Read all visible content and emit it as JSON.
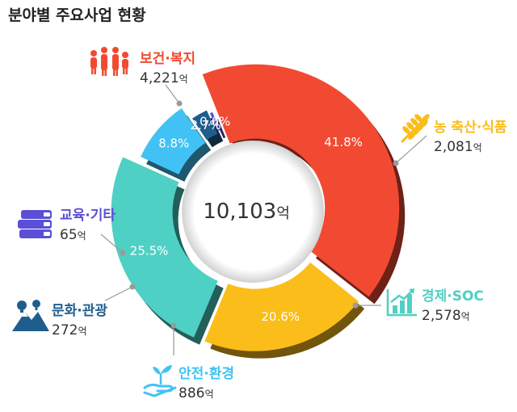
{
  "title": "분야별 주요사업 현황",
  "chart_data": {
    "type": "pie",
    "center_label": {
      "value": "10,103",
      "unit": "억"
    },
    "unit": "억",
    "slices": [
      {
        "name": "보건·복지",
        "value": "4,221",
        "amount": 4221,
        "percent": "41.8%",
        "color": "#f24a32",
        "icon": "family-icon"
      },
      {
        "name": "농 축산·식품",
        "value": "2,081",
        "amount": 2081,
        "percent": "20.6%",
        "color": "#fbbd1a",
        "icon": "wheat-icon"
      },
      {
        "name": "경제·SOC",
        "value": "2,578",
        "amount": 2578,
        "percent": "25.5%",
        "color": "#4fd0c4",
        "icon": "growth-chart-icon"
      },
      {
        "name": "안전·환경",
        "value": "886",
        "amount": 886,
        "percent": "8.8%",
        "color": "#42c2f4",
        "icon": "sprout-hand-icon"
      },
      {
        "name": "문화·관광",
        "value": "272",
        "amount": 272,
        "percent": "2.7%",
        "color": "#1f5d8d",
        "icon": "landscape-balloon-icon"
      },
      {
        "name": "교육·기타",
        "value": "65",
        "amount": 65,
        "percent": "0.6%",
        "color": "#5a4fd6",
        "icon": "books-icon"
      }
    ]
  }
}
